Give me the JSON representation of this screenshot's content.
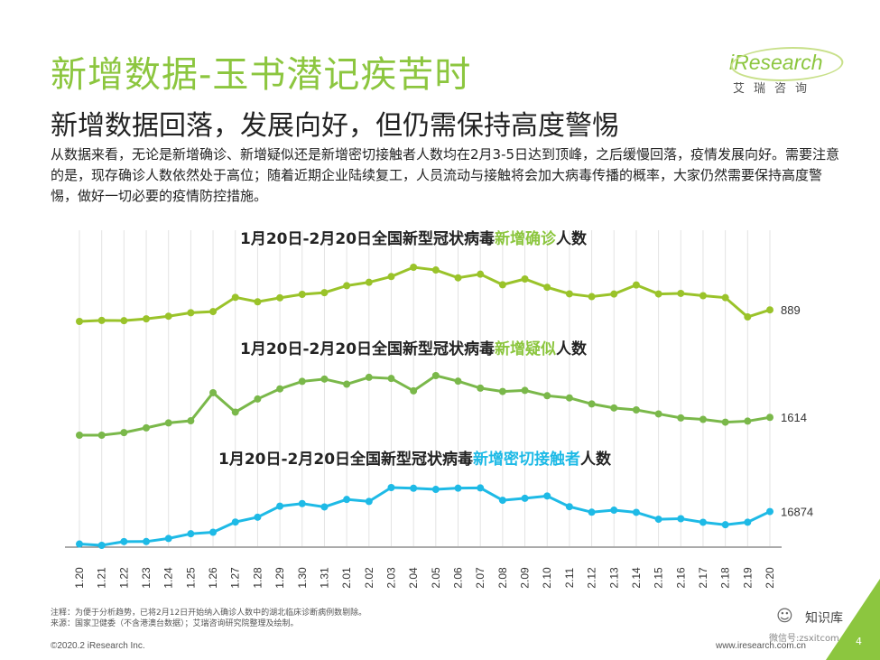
{
  "header": {
    "title": "新增数据-玉书潜记疾苦时",
    "subtitle": "新增数据回落，发展向好，但仍需保持高度警惕",
    "description": "从数据来看，无论是新增确诊、新增疑似还是新增密切接触者人数均在2月3-5日达到顶峰，之后缓慢回落，疫情发展向好。需要注意的是，现存确诊人数依然处于高位；随着近期企业陆续复工，人员流动与接触将会加大病毒传播的概率，大家仍然需要保持高度警惕，做好一切必要的疫情防控措施。"
  },
  "logo": {
    "brand": "iResearch",
    "brand_cn": "艾瑞咨询"
  },
  "footer": {
    "note": "注释：为便于分析趋势，已将2月12日开始纳入确诊人数中的湖北临床诊断病例数剔除。",
    "source": "来源：国家卫健委（不含港澳台数据）；艾瑞咨询研究院整理及绘制。",
    "copyright": "©2020.2 iResearch Inc.",
    "website": "www.iresearch.com.cn",
    "watermark": "知识库",
    "watermark_sub": "微信号:zsxitcom.cn",
    "page_number": "4"
  },
  "colors": {
    "green_dark": "#9ac32a",
    "green_mid": "#7ab84a",
    "blue": "#1ebae6",
    "accent": "#8cc63f"
  },
  "chart_data": {
    "type": "line",
    "categories": [
      "1.20",
      "1.21",
      "1.22",
      "1.23",
      "1.24",
      "1.25",
      "1.26",
      "1.27",
      "1.28",
      "1.29",
      "1.30",
      "1.31",
      "2.01",
      "2.02",
      "2.03",
      "2.04",
      "2.05",
      "2.06",
      "2.07",
      "2.08",
      "2.09",
      "2.10",
      "2.11",
      "2.12",
      "2.13",
      "2.14",
      "2.15",
      "2.16",
      "2.17",
      "2.18",
      "2.19",
      "2.20"
    ],
    "series": [
      {
        "name": "新增确诊",
        "title_prefix": "1月20日-2月20日全国新型冠状病毒",
        "title_highlight": "新增确诊",
        "title_suffix": "人数",
        "end_label": "889",
        "values": [
          77,
          149,
          131,
          259,
          444,
          688,
          769,
          1771,
          1459,
          1737,
          1982,
          2102,
          2590,
          2829,
          3235,
          3887,
          3694,
          3143,
          3399,
          2656,
          3062,
          2478,
          2015,
          1820,
          2004,
          2641,
          2009,
          2048,
          1886,
          1749,
          394,
          889
        ]
      },
      {
        "name": "新增疑似",
        "title_prefix": "1月20日-2月20日全国新型冠状病毒",
        "title_highlight": "新增疑似",
        "title_suffix": "人数",
        "end_label": "1614",
        "values": [
          27,
          28,
          257,
          680,
          1118,
          1309,
          3806,
          2077,
          3248,
          4148,
          4812,
          5019,
          4562,
          5173,
          5072,
          3971,
          5328,
          4833,
          4214,
          3916,
          4008,
          3536,
          3342,
          2807,
          2450,
          2277,
          1918,
          1563,
          1432,
          1185,
          1277,
          1614
        ]
      },
      {
        "name": "新增密切接触者",
        "title_prefix": "1月20日-2月20日全国新型冠状病毒",
        "title_highlight": "新增密切接触者",
        "title_suffix": "人数",
        "end_label": "16874",
        "values": [
          1739,
          1128,
          2880,
          2895,
          4328,
          6521,
          7227,
          11981,
          14239,
          19383,
          20593,
          19032,
          22519,
          21588,
          28057,
          27748,
          27208,
          27776,
          27878,
          22123,
          23049,
          24120,
          19132,
          16582,
          17514,
          16502,
          13291,
          13536,
          11871,
          10728,
          11896,
          16874
        ]
      }
    ]
  }
}
